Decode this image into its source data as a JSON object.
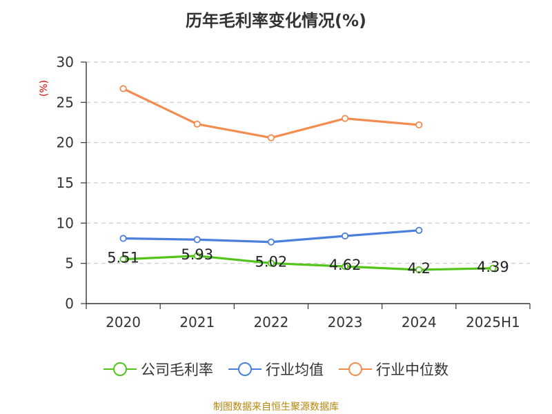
{
  "header": {
    "title": "历年毛利率变化情况(%)",
    "unit": "(%)"
  },
  "footer": {
    "source": "制图数据来自恒生聚源数据库"
  },
  "colors": {
    "company": "#52c41a",
    "industry_avg": "#4a7fdc",
    "industry_median": "#f28c4f",
    "unit_text": "#e60000",
    "source_text": "#b8860b",
    "grid": "#c8c8c8",
    "axis": "#333333"
  },
  "chart_data": {
    "type": "line",
    "categories": [
      "2020",
      "2021",
      "2022",
      "2023",
      "2024",
      "2025H1"
    ],
    "ylim": [
      0,
      30
    ],
    "yticks": [
      0,
      5,
      10,
      15,
      20,
      25,
      30
    ],
    "grid": true,
    "legend_position": "bottom-center",
    "series": [
      {
        "name": "公司毛利率",
        "values": [
          5.51,
          5.93,
          5.02,
          4.62,
          4.2,
          4.39
        ],
        "labels": [
          "5.51",
          "5.93",
          "5.02",
          "4.62",
          "4.2",
          "4.39"
        ],
        "color": "#52c41a"
      },
      {
        "name": "行业均值",
        "values": [
          8.1,
          7.95,
          7.65,
          8.4,
          9.1,
          null
        ],
        "color": "#4a7fdc"
      },
      {
        "name": "行业中位数",
        "values": [
          26.7,
          22.3,
          20.6,
          23.0,
          22.2,
          null
        ],
        "color": "#f28c4f"
      }
    ]
  }
}
